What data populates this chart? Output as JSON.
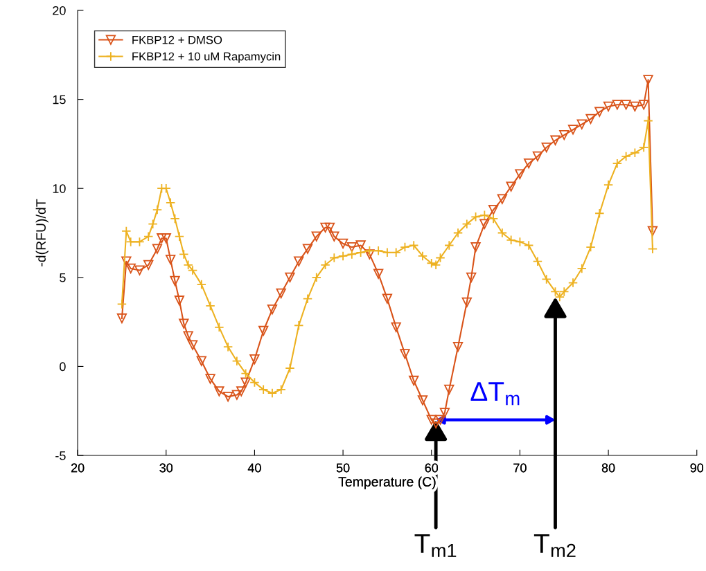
{
  "chart_data": {
    "type": "line",
    "xlabel": "Temperature (C)",
    "ylabel": "-d(RFU)/dT",
    "xlim": [
      20,
      90
    ],
    "xticks": [
      20,
      30,
      40,
      50,
      60,
      70,
      80,
      90
    ],
    "ylim": [
      -5,
      20
    ],
    "yticks": [
      -5,
      0,
      5,
      10,
      15,
      20
    ],
    "grid": false,
    "legend": "top left",
    "line_style": "solid",
    "series": [
      {
        "name": "FKBP12 + DMSO",
        "color": "#d95319",
        "marker": "triangle",
        "x": [
          25,
          25.5,
          26,
          27,
          28,
          29,
          29.5,
          30,
          30.5,
          31,
          31.5,
          32,
          32.5,
          33,
          34,
          35,
          36,
          37,
          38,
          38.5,
          39,
          40,
          41,
          42,
          43,
          44,
          45,
          46,
          47,
          48,
          48.5,
          49,
          50,
          51,
          52,
          53,
          54,
          55,
          56,
          57,
          58,
          59,
          60,
          60.5,
          61,
          61.5,
          62,
          63,
          64,
          64.5,
          65,
          66,
          67,
          68,
          69,
          70,
          71,
          72,
          73,
          74,
          75,
          76,
          77,
          78,
          79,
          80,
          81,
          82,
          83,
          84,
          84.5,
          85
        ],
        "values": [
          2.7,
          5.9,
          5.5,
          5.4,
          5.7,
          6.6,
          7.2,
          7.2,
          6.0,
          4.8,
          3.7,
          2.4,
          1.7,
          1.2,
          0.3,
          -0.7,
          -1.4,
          -1.7,
          -1.6,
          -1.4,
          -0.9,
          0.4,
          2.0,
          3.2,
          4.1,
          5.0,
          5.9,
          6.6,
          7.3,
          7.8,
          7.8,
          7.3,
          6.9,
          6.7,
          6.8,
          6.3,
          5.2,
          3.8,
          2.2,
          0.7,
          -0.8,
          -1.9,
          -3.0,
          -3.2,
          -3.0,
          -2.6,
          -1.3,
          1.1,
          3.6,
          5.0,
          6.7,
          8.0,
          8.8,
          9.4,
          10.1,
          10.8,
          11.4,
          11.8,
          12.3,
          12.7,
          13.0,
          13.3,
          13.6,
          13.9,
          14.3,
          14.6,
          14.7,
          14.7,
          14.6,
          14.7,
          16.1,
          7.6
        ]
      },
      {
        "name": "FKBP12 + 10 uM Rapamycin",
        "color": "#edb120",
        "marker": "cross",
        "x": [
          25,
          25.5,
          26,
          27,
          28,
          28.5,
          29,
          29.5,
          30,
          30.5,
          31,
          31.5,
          32,
          32.5,
          33,
          34,
          35,
          36,
          37,
          38,
          39,
          40,
          41,
          42,
          43,
          44,
          45,
          46,
          47,
          48,
          49,
          50,
          51,
          52,
          53,
          54,
          55,
          56,
          57,
          58,
          59,
          60,
          60.5,
          61,
          62,
          63,
          64,
          65,
          66,
          67,
          68,
          69,
          70,
          71,
          72,
          73,
          74,
          74.5,
          75,
          76,
          77,
          78,
          79,
          80,
          81,
          82,
          83,
          84,
          84.5,
          85
        ],
        "values": [
          3.5,
          7.6,
          7.0,
          7.0,
          7.3,
          8.0,
          8.8,
          10.0,
          10.0,
          9.2,
          8.3,
          7.3,
          6.3,
          5.7,
          5.4,
          4.6,
          3.4,
          2.2,
          1.1,
          0.3,
          -0.4,
          -0.9,
          -1.3,
          -1.5,
          -1.3,
          -0.1,
          2.3,
          3.8,
          5.0,
          5.7,
          6.1,
          6.2,
          6.3,
          6.4,
          6.5,
          6.5,
          6.4,
          6.4,
          6.7,
          6.8,
          6.2,
          5.8,
          5.7,
          6.1,
          6.8,
          7.5,
          8.0,
          8.4,
          8.5,
          8.3,
          7.5,
          7.1,
          7.0,
          6.8,
          5.9,
          4.9,
          4.2,
          3.9,
          4.2,
          4.7,
          5.5,
          6.7,
          8.6,
          10.2,
          11.4,
          11.8,
          12.0,
          12.3,
          13.8,
          6.6
        ]
      }
    ],
    "annotations": [
      {
        "text": "T$_{m1}$",
        "x": 60.5,
        "y": -3.0
      },
      {
        "text": "T$_{m2}$",
        "x": 74,
        "y": 3.9
      },
      "ΔT$_{m}$"
    ]
  }
}
